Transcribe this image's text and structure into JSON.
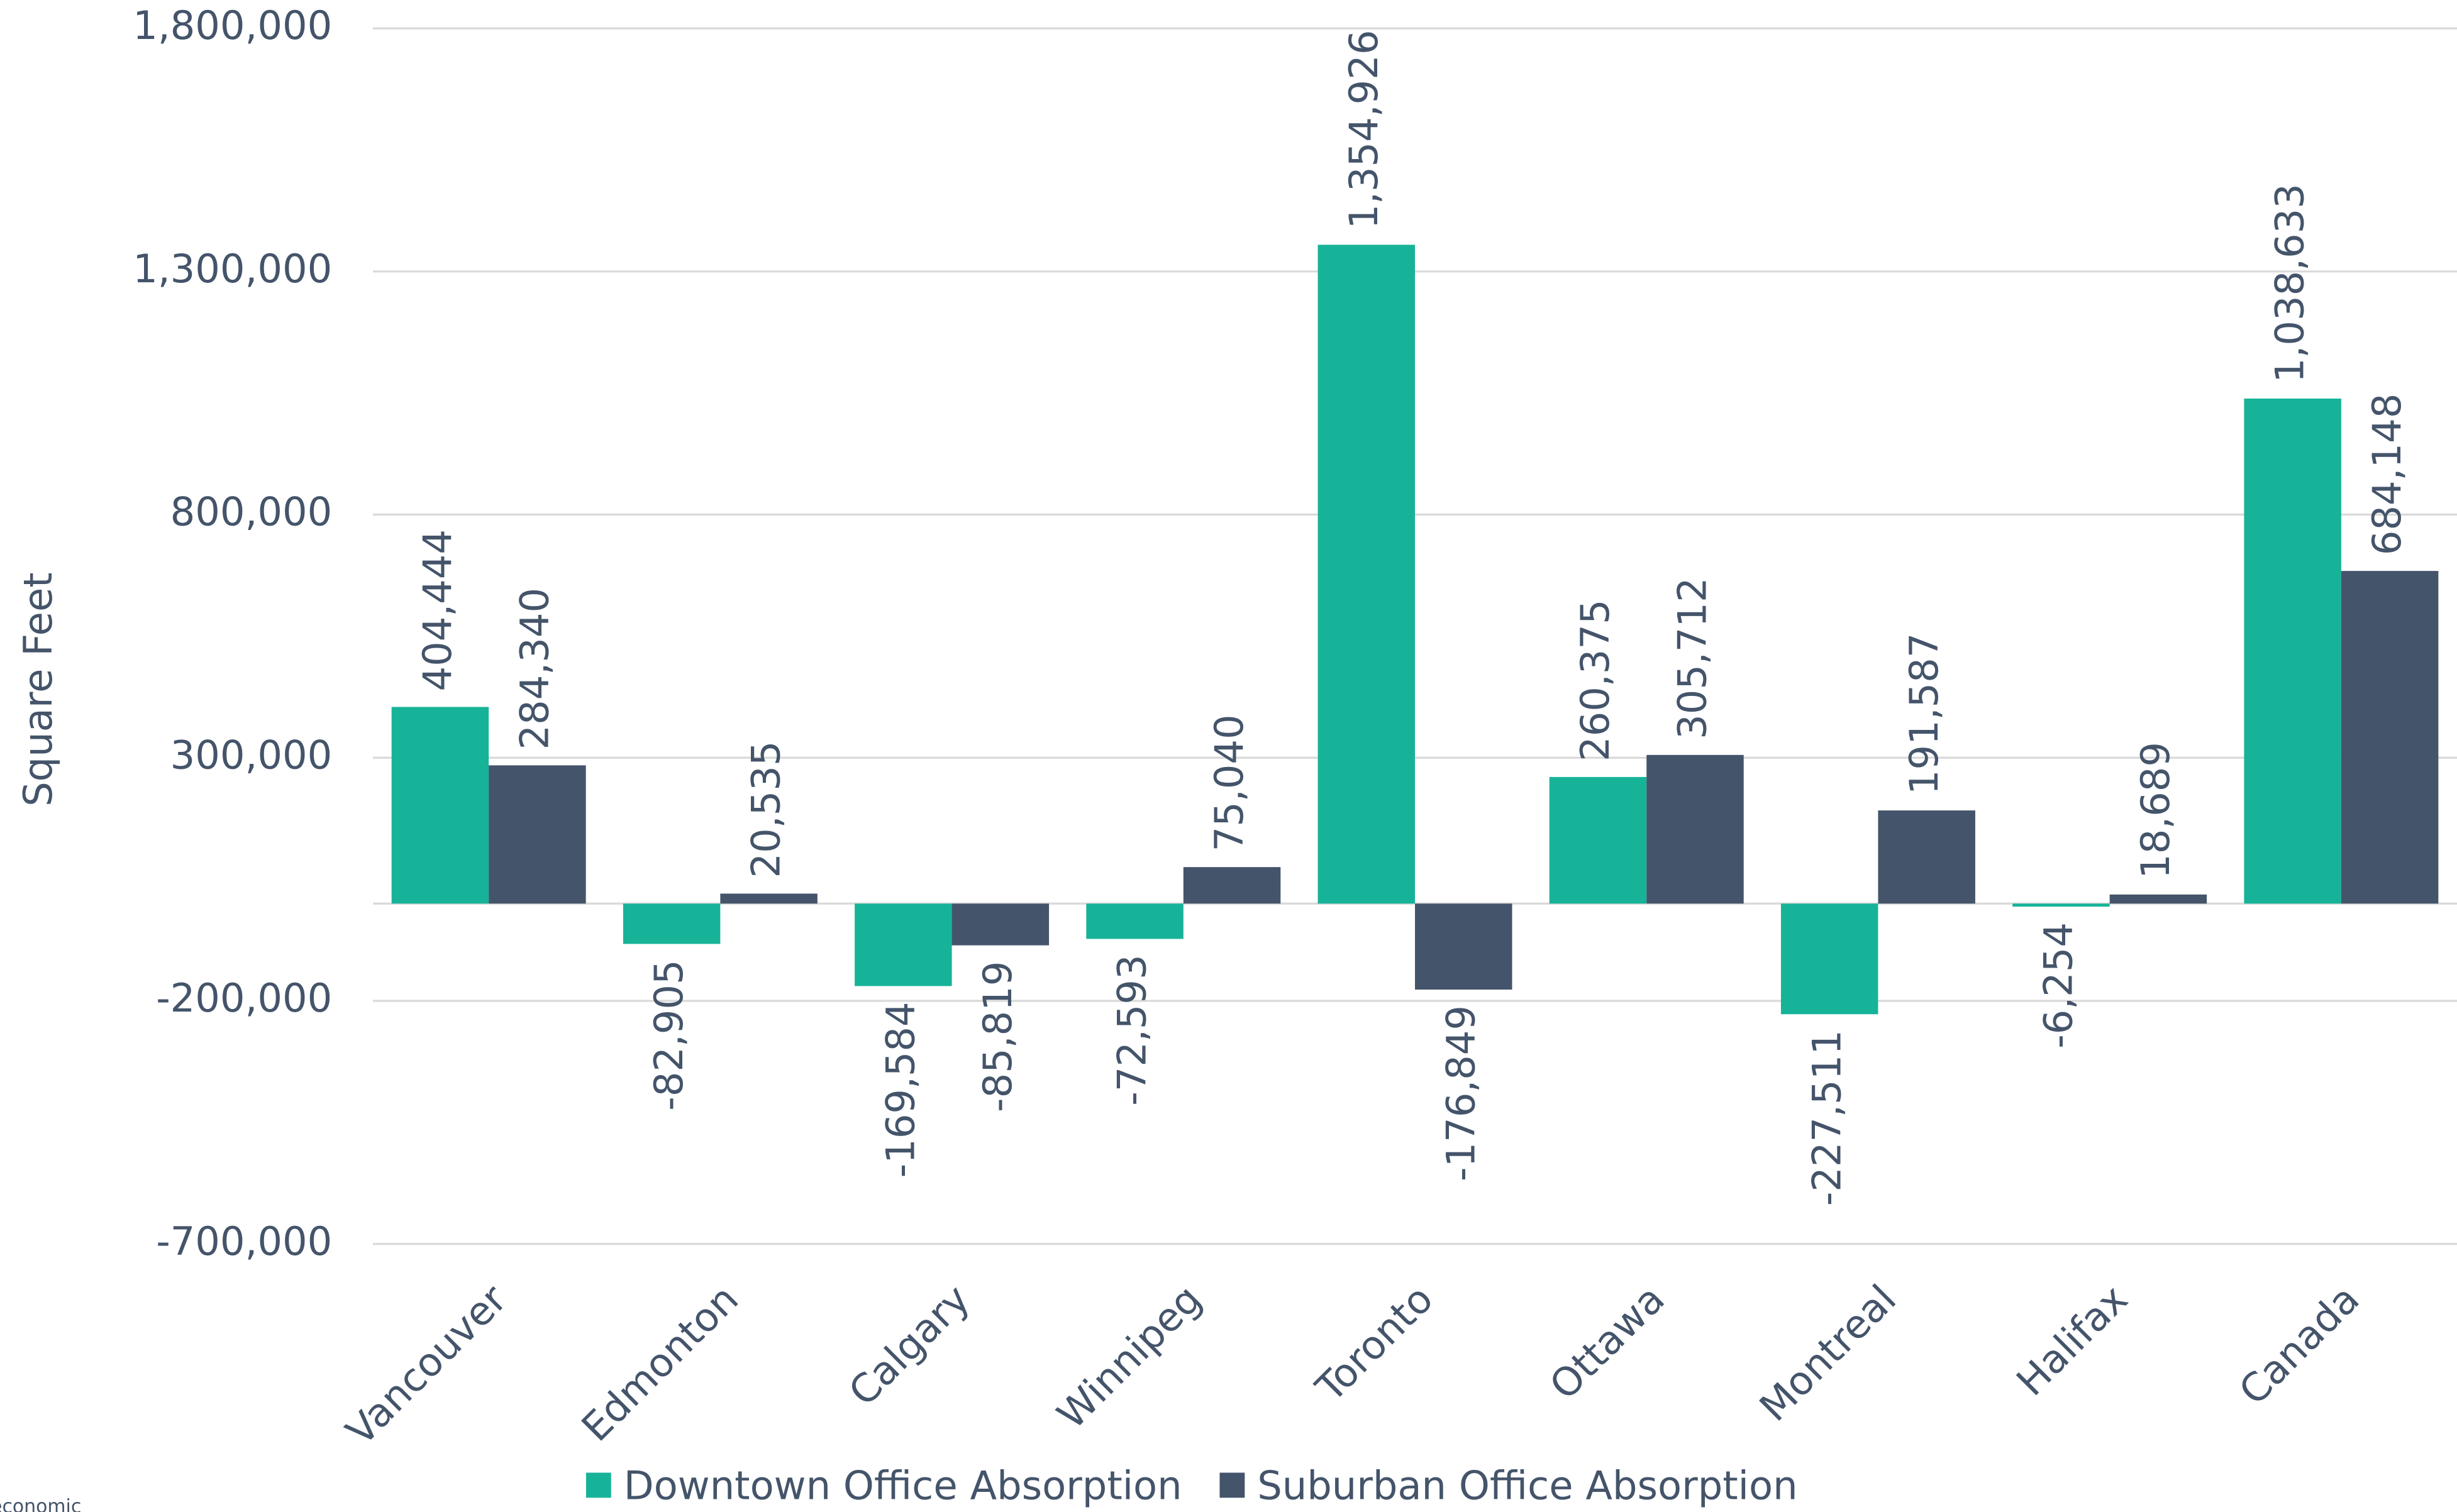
{
  "chart_data": {
    "type": "bar",
    "y_label": "Square Feet",
    "footnote": "economic",
    "categories": [
      "Vancouver",
      "Edmonton",
      "Calgary",
      "Winnipeg",
      "Toronto",
      "Ottawa",
      "Montreal",
      "Halifax",
      "Canada"
    ],
    "series": [
      {
        "name": "Downtown Office Absorption",
        "color": "#17b398",
        "values": [
          404444,
          -82905,
          -169584,
          -72593,
          1354926,
          260375,
          -227511,
          -6254,
          1038633
        ],
        "value_labels": [
          "404,444",
          "-82,905",
          "-169,584",
          "-72,593",
          "1,354,926",
          "260,375",
          "-227,511",
          "-6,254",
          "1,038,633"
        ]
      },
      {
        "name": "Suburban Office Absorption",
        "color": "#44546a",
        "values": [
          284340,
          20535,
          -85819,
          75040,
          -176849,
          305712,
          191587,
          18689,
          684148
        ],
        "value_labels": [
          "284,340",
          "20,535",
          "-85,819",
          "75,040",
          "-176,849",
          "305,712",
          "191,587",
          "18,689",
          "684,148"
        ]
      }
    ],
    "ylim": [
      -700000,
      1800000
    ],
    "yticks": [
      {
        "value": -700000,
        "label": "-700,000"
      },
      {
        "value": -200000,
        "label": "-200,000"
      },
      {
        "value": 300000,
        "label": "300,000"
      },
      {
        "value": 800000,
        "label": "800,000"
      },
      {
        "value": 1300000,
        "label": "1,300,000"
      },
      {
        "value": 1800000,
        "label": "1,800,000"
      }
    ],
    "grid": true,
    "legend": "bottom"
  }
}
